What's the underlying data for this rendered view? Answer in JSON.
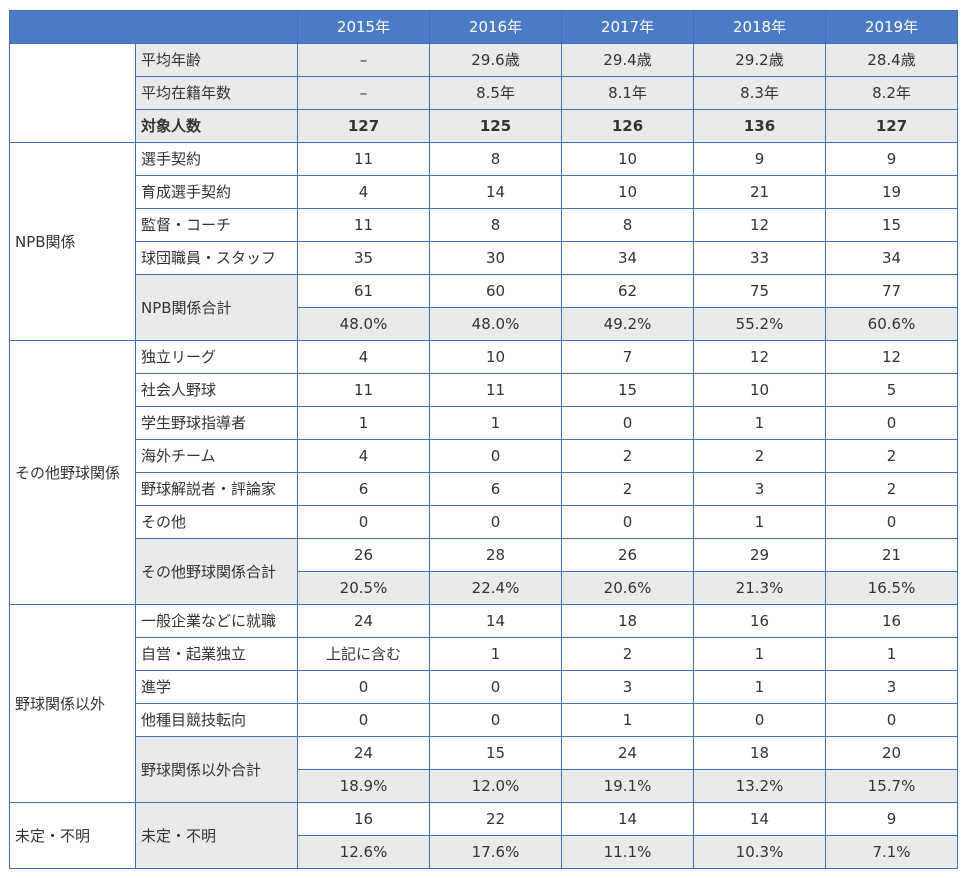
{
  "years": [
    "2015年",
    "2016年",
    "2017年",
    "2018年",
    "2019年"
  ],
  "rows": [
    {
      "cat": "",
      "catspan": 3,
      "item": "平均年齢",
      "vals": [
        "–",
        "29.6歳",
        "29.4歳",
        "29.2歳",
        "28.4歳"
      ],
      "shade": true
    },
    {
      "item": "平均在籍年数",
      "vals": [
        "–",
        "8.5年",
        "8.1年",
        "8.3年",
        "8.2年"
      ],
      "shade": true
    },
    {
      "item": "対象人数",
      "vals": [
        "127",
        "125",
        "126",
        "136",
        "127"
      ],
      "shade": true,
      "bold": true
    },
    {
      "cat": "NPB関係",
      "catspan": 6,
      "item": "選手契約",
      "vals": [
        "11",
        "8",
        "10",
        "9",
        "9"
      ]
    },
    {
      "item": "育成選手契約",
      "vals": [
        "4",
        "14",
        "10",
        "21",
        "19"
      ]
    },
    {
      "item": "監督・コーチ",
      "vals": [
        "11",
        "8",
        "8",
        "12",
        "15"
      ]
    },
    {
      "item": "球団職員・スタッフ",
      "vals": [
        "35",
        "30",
        "34",
        "33",
        "34"
      ]
    },
    {
      "item": "NPB関係合計",
      "itemspan": 2,
      "vals": [
        "61",
        "60",
        "62",
        "75",
        "77"
      ]
    },
    {
      "vals": [
        "48.0%",
        "48.0%",
        "49.2%",
        "55.2%",
        "60.6%"
      ],
      "pct": true
    },
    {
      "cat": "その他野球関係",
      "catspan": 8,
      "item": "独立リーグ",
      "vals": [
        "4",
        "10",
        "7",
        "12",
        "12"
      ]
    },
    {
      "item": "社会人野球",
      "vals": [
        "11",
        "11",
        "15",
        "10",
        "5"
      ]
    },
    {
      "item": "学生野球指導者",
      "vals": [
        "1",
        "1",
        "0",
        "1",
        "0"
      ]
    },
    {
      "item": "海外チーム",
      "vals": [
        "4",
        "0",
        "2",
        "2",
        "2"
      ]
    },
    {
      "item": "野球解説者・評論家",
      "vals": [
        "6",
        "6",
        "2",
        "3",
        "2"
      ]
    },
    {
      "item": "その他",
      "vals": [
        "0",
        "0",
        "0",
        "1",
        "0"
      ]
    },
    {
      "item": "その他野球関係合計",
      "itemspan": 2,
      "vals": [
        "26",
        "28",
        "26",
        "29",
        "21"
      ]
    },
    {
      "vals": [
        "20.5%",
        "22.4%",
        "20.6%",
        "21.3%",
        "16.5%"
      ],
      "pct": true
    },
    {
      "cat": "野球関係以外",
      "catspan": 6,
      "item": "一般企業などに就職",
      "vals": [
        "24",
        "14",
        "18",
        "16",
        "16"
      ]
    },
    {
      "item": "自営・起業独立",
      "vals": [
        "上記に含む",
        "1",
        "2",
        "1",
        "1"
      ]
    },
    {
      "item": "進学",
      "vals": [
        "0",
        "0",
        "3",
        "1",
        "3"
      ]
    },
    {
      "item": "他種目競技転向",
      "vals": [
        "0",
        "0",
        "1",
        "0",
        "0"
      ]
    },
    {
      "item": "野球関係以外合計",
      "itemspan": 2,
      "vals": [
        "24",
        "15",
        "24",
        "18",
        "20"
      ]
    },
    {
      "vals": [
        "18.9%",
        "12.0%",
        "19.1%",
        "13.2%",
        "15.7%"
      ],
      "pct": true
    },
    {
      "cat": "未定・不明",
      "catspan": 2,
      "item": "未定・不明",
      "itemspan": 2,
      "vals": [
        "16",
        "22",
        "14",
        "14",
        "9"
      ]
    },
    {
      "vals": [
        "12.6%",
        "17.6%",
        "11.1%",
        "10.3%",
        "7.1%"
      ],
      "pct": true
    }
  ]
}
